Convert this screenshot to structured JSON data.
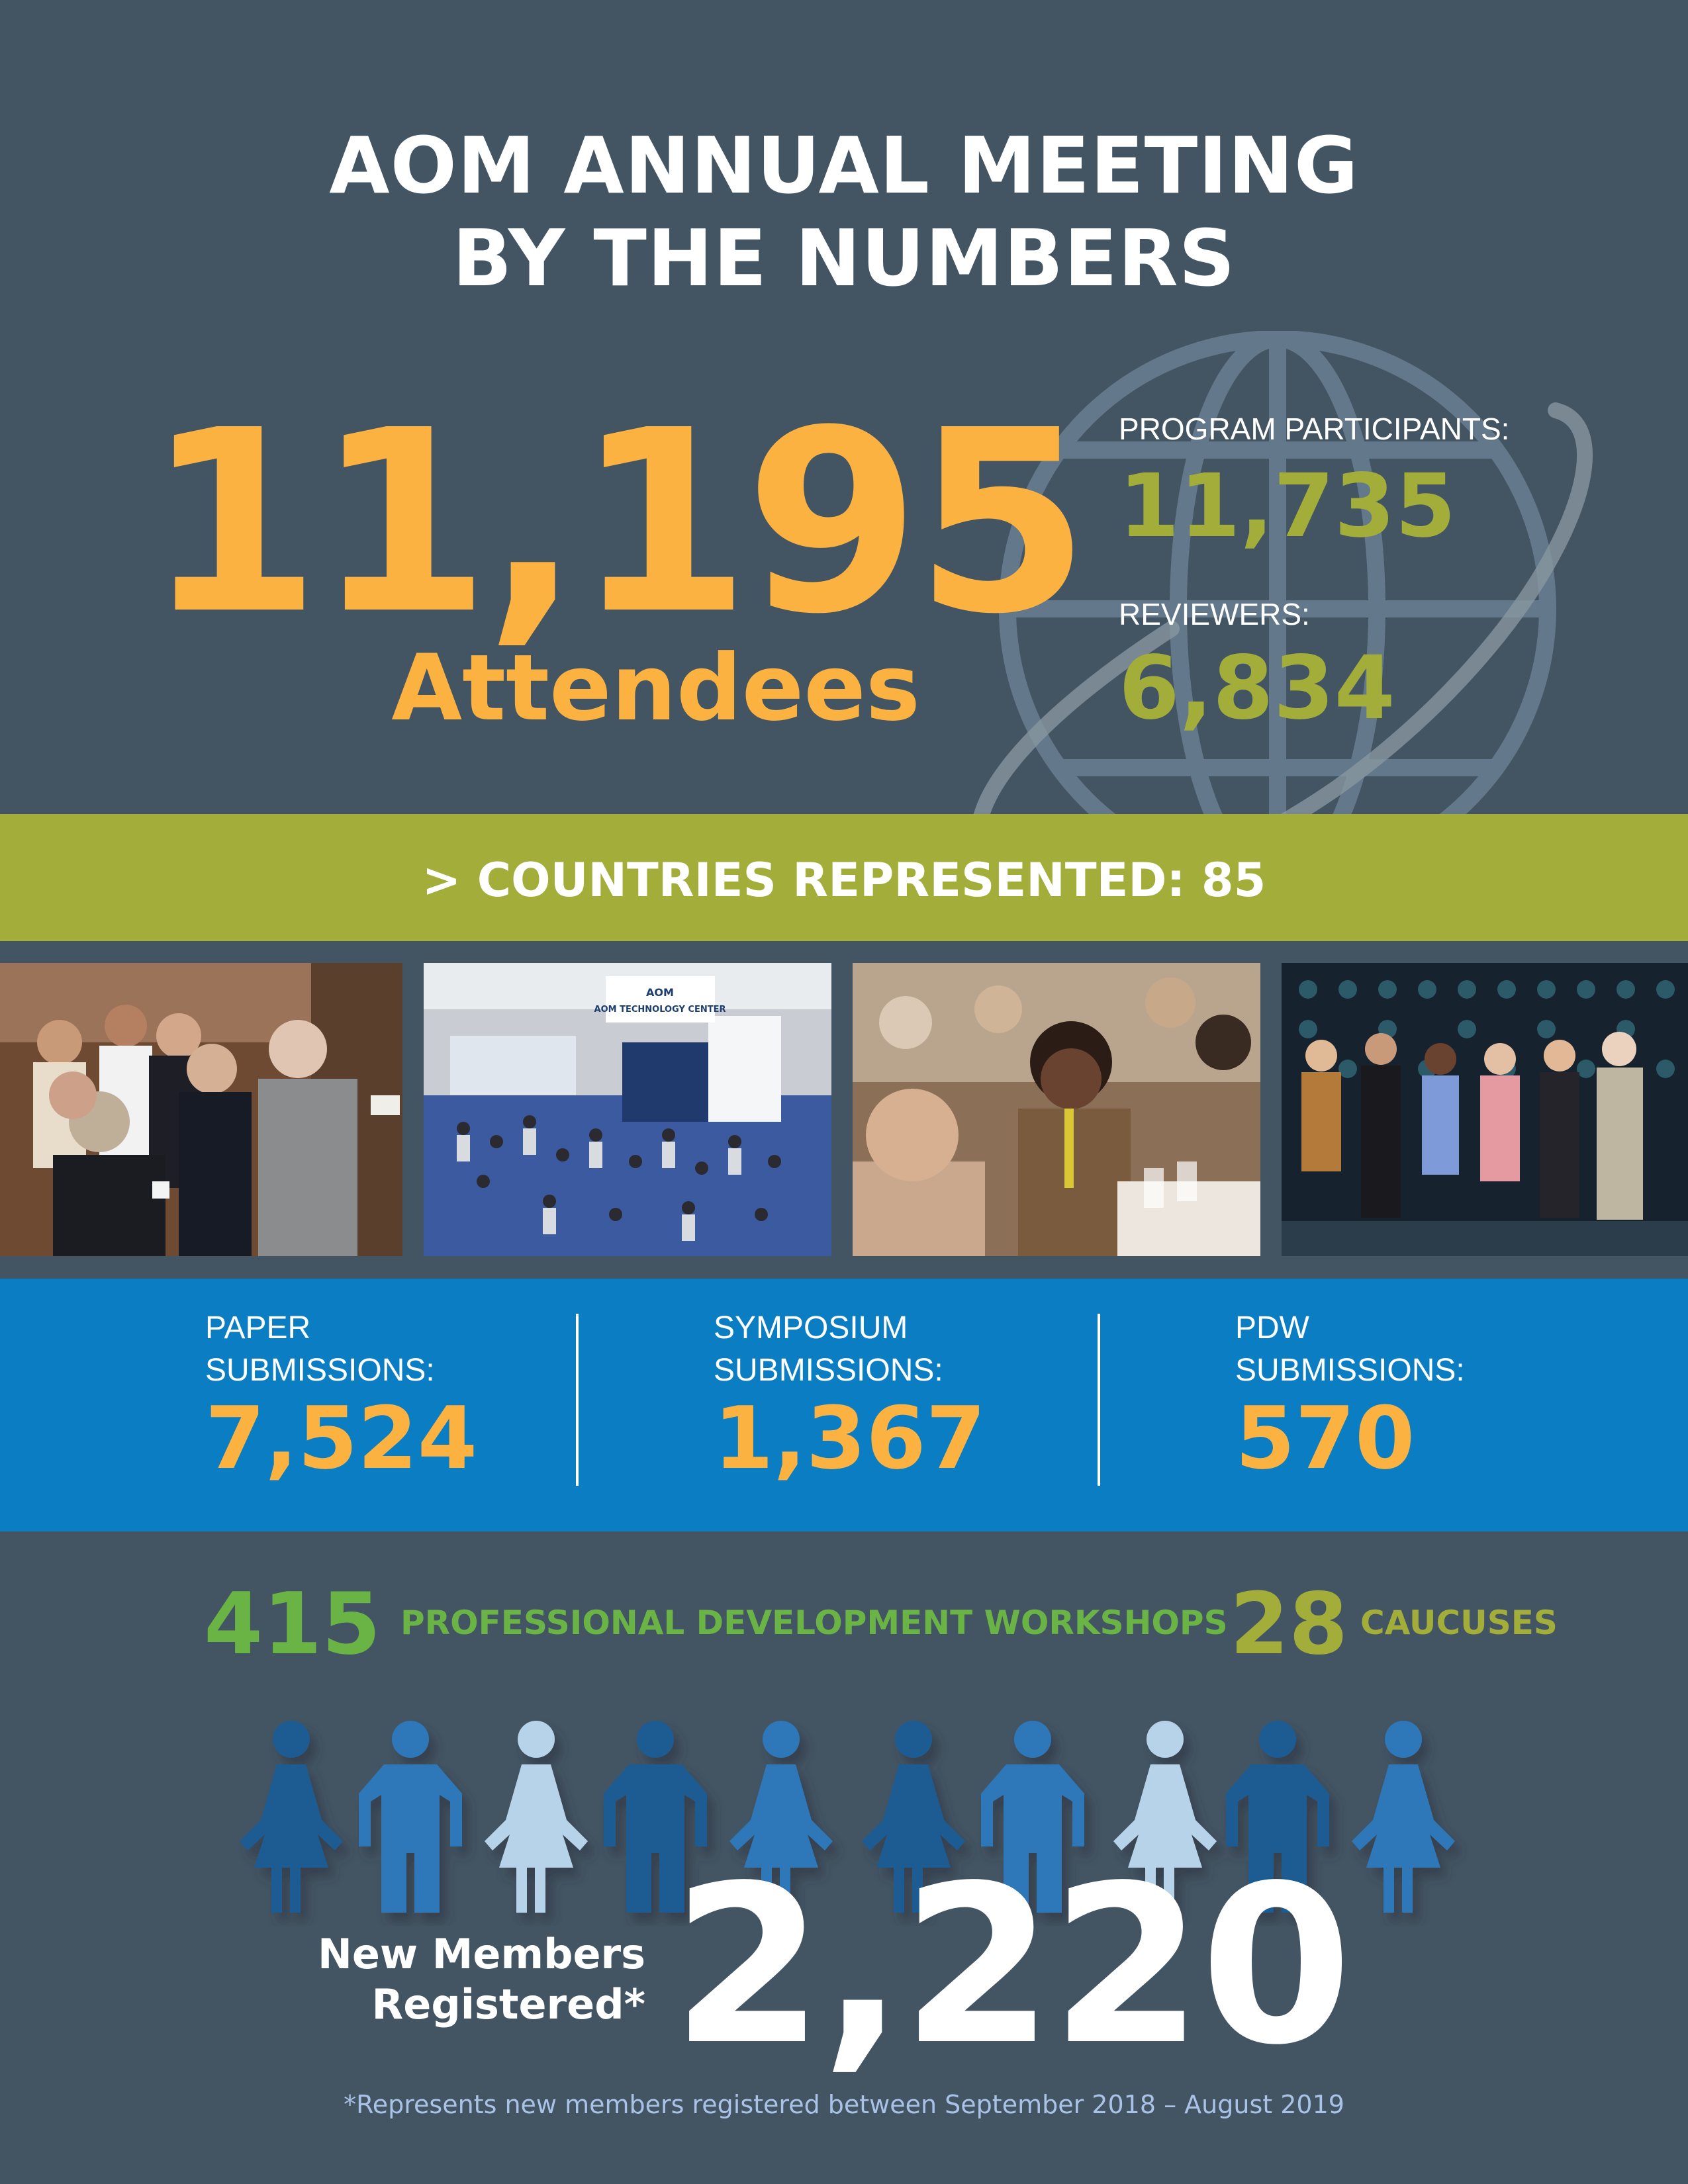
{
  "title": {
    "line1": "AOM ANNUAL MEETING",
    "line2": "BY THE NUMBERS"
  },
  "attendees": {
    "value": "11,195",
    "label": "Attendees"
  },
  "program_participants": {
    "label": "PROGRAM PARTICIPANTS:",
    "value": "11,735"
  },
  "reviewers": {
    "label": "REVIEWERS:",
    "value": "6,834"
  },
  "countries": {
    "text": "> COUNTRIES REPRESENTED: 85"
  },
  "photos": [
    {
      "caption": ""
    },
    {
      "sign": "AOM TECHNOLOGY CENTER"
    },
    {
      "caption": ""
    },
    {
      "caption": ""
    }
  ],
  "submissions": [
    {
      "label_line1": "PAPER",
      "label_line2": "SUBMISSIONS:",
      "value": "7,524"
    },
    {
      "label_line1": "SYMPOSIUM",
      "label_line2": "SUBMISSIONS:",
      "value": "1,367"
    },
    {
      "label_line1": "PDW",
      "label_line2": "SUBMISSIONS:",
      "value": "570"
    }
  ],
  "workshops": {
    "value": "415",
    "label": "PROFESSIONAL DEVELOPMENT WORKSHOPS"
  },
  "caucuses": {
    "value": "28",
    "label": "CAUCUSES"
  },
  "new_members": {
    "label_line1": "New Members",
    "label_line2": "Registered*",
    "value": "2,220"
  },
  "footnote": "*Represents new members registered between September 2018 – August 2019",
  "colors": {
    "background": "#435563",
    "accent_orange": "#fbb241",
    "accent_olive": "#a3ad3a",
    "accent_green": "#6ab446",
    "accent_blue": "#0a7dc3"
  },
  "icons": [
    "globe-icon",
    "person-icon"
  ]
}
